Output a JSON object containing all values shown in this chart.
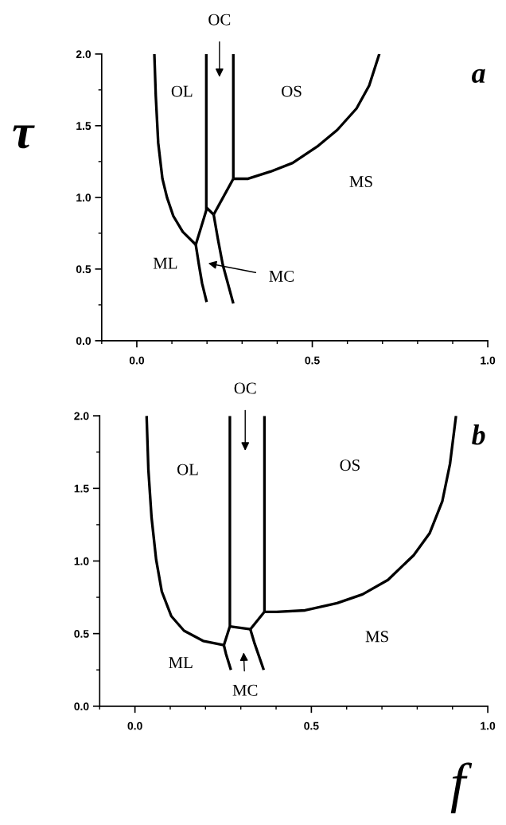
{
  "chart_data": [
    {
      "type": "line",
      "title": "a",
      "ylabel": "τ",
      "xlim": [
        -0.1,
        1.0
      ],
      "ylim": [
        0,
        2.0
      ],
      "xticks": [
        {
          "value": -0.1,
          "label": null
        },
        {
          "value": 0,
          "label": "0.0"
        },
        {
          "value": 0.1,
          "label": null
        },
        {
          "value": 0.2,
          "label": null
        },
        {
          "value": 0.3,
          "label": null
        },
        {
          "value": 0.4,
          "label": null
        },
        {
          "value": 0.5,
          "label": "0.5"
        },
        {
          "value": 0.6,
          "label": null
        },
        {
          "value": 0.7,
          "label": null
        },
        {
          "value": 0.8,
          "label": null
        },
        {
          "value": 0.9,
          "label": null
        },
        {
          "value": 1.0,
          "label": "1.0"
        }
      ],
      "yticks": [
        {
          "value": 0,
          "label": "0.0"
        },
        {
          "value": 0.25,
          "label": null
        },
        {
          "value": 0.5,
          "label": "0.5"
        },
        {
          "value": 0.75,
          "label": null
        },
        {
          "value": 1.0,
          "label": "1.0"
        },
        {
          "value": 1.25,
          "label": null
        },
        {
          "value": 1.5,
          "label": "1.5"
        },
        {
          "value": 1.75,
          "label": null
        },
        {
          "value": 2.0,
          "label": "2.0"
        }
      ],
      "grid": false,
      "legend": false,
      "marker": "none",
      "line_style": "solid",
      "series": [
        {
          "color": "#000000",
          "x": [
            0.05,
            0.054,
            0.061,
            0.073,
            0.086,
            0.104,
            0.131,
            0.168
          ],
          "values": [
            2.0,
            1.71,
            1.38,
            1.13,
            1.0,
            0.87,
            0.76,
            0.67
          ]
        },
        {
          "color": "#000000",
          "x": [
            0.168,
            0.177,
            0.186,
            0.199
          ],
          "values": [
            0.67,
            0.53,
            0.4,
            0.27
          ]
        },
        {
          "color": "#000000",
          "x": [
            0.168,
            0.198,
            0.198
          ],
          "values": [
            0.67,
            0.91,
            2.0
          ]
        },
        {
          "color": "#000000",
          "x": [
            0.198,
            0.219
          ],
          "values": [
            0.93,
            0.88
          ]
        },
        {
          "color": "#000000",
          "x": [
            0.219,
            0.275
          ],
          "values": [
            0.88,
            1.13
          ]
        },
        {
          "color": "#000000",
          "x": [
            0.275,
            0.275
          ],
          "values": [
            1.13,
            2.0
          ]
        },
        {
          "color": "#000000",
          "x": [
            0.219,
            0.231,
            0.245,
            0.275
          ],
          "values": [
            0.88,
            0.71,
            0.53,
            0.26
          ]
        },
        {
          "color": "#000000",
          "x": [
            0.275,
            0.317,
            0.381,
            0.444,
            0.517,
            0.571,
            0.626,
            0.662,
            0.691
          ],
          "values": [
            1.13,
            1.13,
            1.18,
            1.24,
            1.36,
            1.47,
            1.62,
            1.78,
            2.0
          ]
        }
      ],
      "annotations": [
        "OL",
        "OS",
        "MS",
        "ML",
        "MC",
        "OC"
      ]
    },
    {
      "type": "line",
      "title": "b",
      "xlabel": "f",
      "xlim": [
        -0.1,
        1.0
      ],
      "ylim": [
        0,
        2.0
      ],
      "xticks": [
        {
          "value": -0.1,
          "label": null
        },
        {
          "value": 0,
          "label": "0.0"
        },
        {
          "value": 0.1,
          "label": null
        },
        {
          "value": 0.2,
          "label": null
        },
        {
          "value": 0.3,
          "label": null
        },
        {
          "value": 0.4,
          "label": null
        },
        {
          "value": 0.5,
          "label": "0.5"
        },
        {
          "value": 0.6,
          "label": null
        },
        {
          "value": 0.7,
          "label": null
        },
        {
          "value": 0.8,
          "label": null
        },
        {
          "value": 0.9,
          "label": null
        },
        {
          "value": 1.0,
          "label": "1.0"
        }
      ],
      "yticks": [
        {
          "value": 0,
          "label": "0.0"
        },
        {
          "value": 0.25,
          "label": null
        },
        {
          "value": 0.5,
          "label": "0.5"
        },
        {
          "value": 0.75,
          "label": null
        },
        {
          "value": 1.0,
          "label": "1.0"
        },
        {
          "value": 1.25,
          "label": null
        },
        {
          "value": 1.5,
          "label": "1.5"
        },
        {
          "value": 1.75,
          "label": null
        },
        {
          "value": 2.0,
          "label": "2.0"
        }
      ],
      "grid": false,
      "legend": false,
      "marker": "none",
      "line_style": "solid",
      "series": [
        {
          "color": "#000000",
          "x": [
            0.033,
            0.038,
            0.047,
            0.06,
            0.076,
            0.103,
            0.139,
            0.193,
            0.252
          ],
          "values": [
            2.0,
            1.63,
            1.3,
            1.01,
            0.79,
            0.62,
            0.52,
            0.45,
            0.42
          ]
        },
        {
          "color": "#000000",
          "x": [
            0.252,
            0.258,
            0.272
          ],
          "values": [
            0.42,
            0.36,
            0.25
          ]
        },
        {
          "color": "#000000",
          "x": [
            0.252,
            0.269,
            0.269
          ],
          "values": [
            0.42,
            0.55,
            2.0
          ]
        },
        {
          "color": "#000000",
          "x": [
            0.269,
            0.327
          ],
          "values": [
            0.55,
            0.53
          ]
        },
        {
          "color": "#000000",
          "x": [
            0.327,
            0.338,
            0.365
          ],
          "values": [
            0.53,
            0.44,
            0.25
          ]
        },
        {
          "color": "#000000",
          "x": [
            0.327,
            0.367
          ],
          "values": [
            0.53,
            0.65
          ]
        },
        {
          "color": "#000000",
          "x": [
            0.367,
            0.367
          ],
          "values": [
            0.65,
            2.0
          ]
        },
        {
          "color": "#000000",
          "x": [
            0.367,
            0.401,
            0.482,
            0.573,
            0.645,
            0.717,
            0.79,
            0.835,
            0.871,
            0.893,
            0.91
          ],
          "values": [
            0.65,
            0.65,
            0.66,
            0.71,
            0.77,
            0.87,
            1.04,
            1.19,
            1.41,
            1.67,
            2.0
          ]
        }
      ],
      "annotations": [
        "OL",
        "OS",
        "MS",
        "ML",
        "MC",
        "OC"
      ]
    }
  ]
}
